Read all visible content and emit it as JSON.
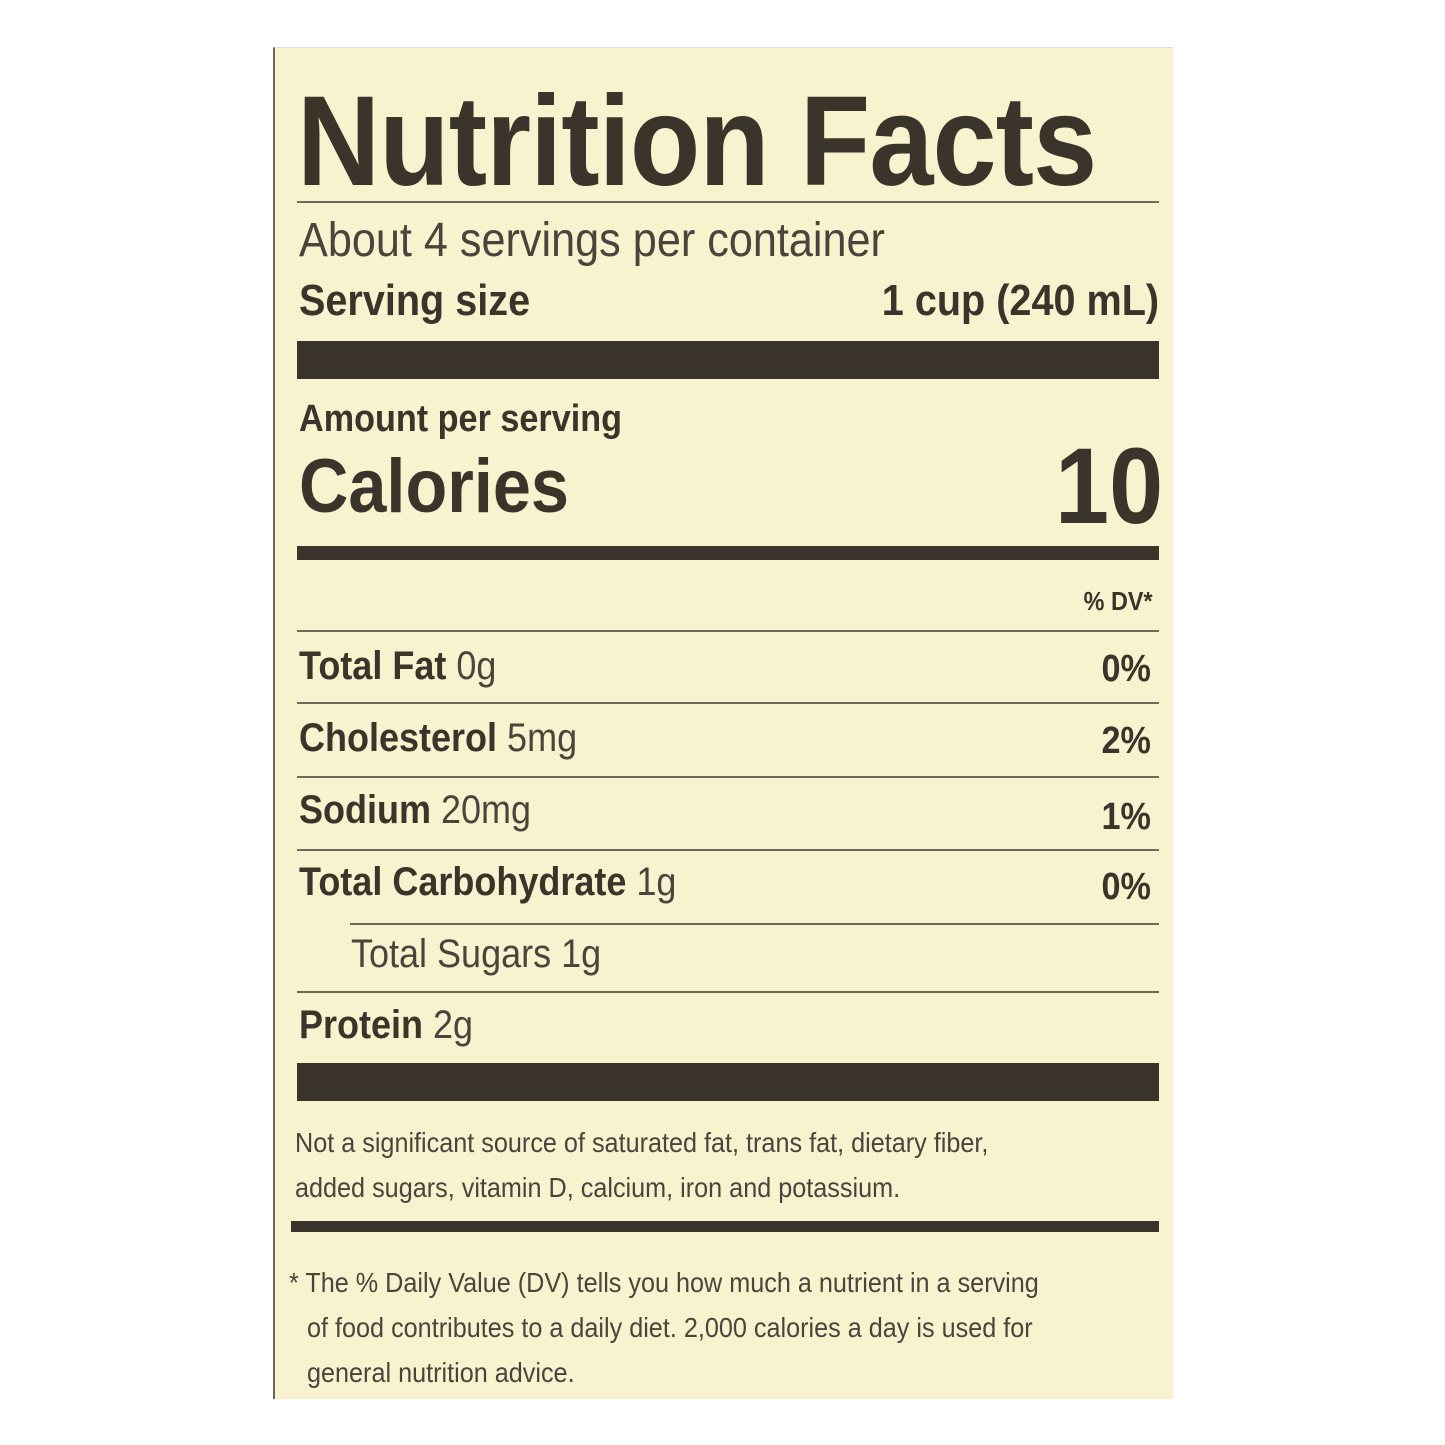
{
  "title": "Nutrition Facts",
  "servings_per_container": "About 4 servings per container",
  "serving_size": {
    "label": "Serving size",
    "value": "1 cup (240 mL)"
  },
  "amount_per_serving": "Amount per serving",
  "calories": {
    "label": "Calories",
    "value": "10"
  },
  "dv_header": "% DV*",
  "nutrients": [
    {
      "name": "Total Fat",
      "amount": "0g",
      "dv": "0%"
    },
    {
      "name": "Cholesterol",
      "amount": "5mg",
      "dv": "2%"
    },
    {
      "name": "Sodium",
      "amount": "20mg",
      "dv": "1%"
    },
    {
      "name": "Total Carbohydrate",
      "amount": "1g",
      "dv": "0%"
    },
    {
      "name": "Total Sugars 1g",
      "amount": "",
      "dv": ""
    },
    {
      "name": "Protein",
      "amount": "2g",
      "dv": ""
    }
  ],
  "not_significant": [
    "Not a significant source of saturated fat, trans fat, dietary fiber,",
    "added sugars, vitamin D, calcium, iron and potassium."
  ],
  "footnote": [
    "* The % Daily Value (DV) tells you how much a nutrient in a serving",
    "of food contributes to a daily diet. 2,000 calories a day is used for",
    "general nutrition advice."
  ],
  "colors": {
    "background": "#f8f2cf",
    "ink": "#3a342b"
  }
}
